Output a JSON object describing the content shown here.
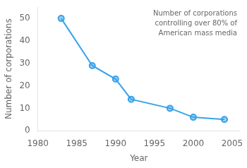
{
  "chart_data": {
    "type": "line",
    "x": [
      1983,
      1987,
      1990,
      1992,
      1997,
      2000,
      2004
    ],
    "values": [
      50,
      29,
      23,
      14,
      10,
      6,
      5
    ],
    "xlabel": "Year",
    "ylabel": "Number of corporations",
    "annotation": "Number of corporations\ncontrolling over 80% of\nAmerican mass media",
    "xlim": [
      1980,
      2006
    ],
    "ylim": [
      0,
      55
    ],
    "xticks": [
      1980,
      1985,
      1990,
      1995,
      2000,
      2005
    ],
    "yticks": [
      0,
      10,
      20,
      30,
      40,
      50
    ],
    "marker": "circle",
    "grid": false
  }
}
